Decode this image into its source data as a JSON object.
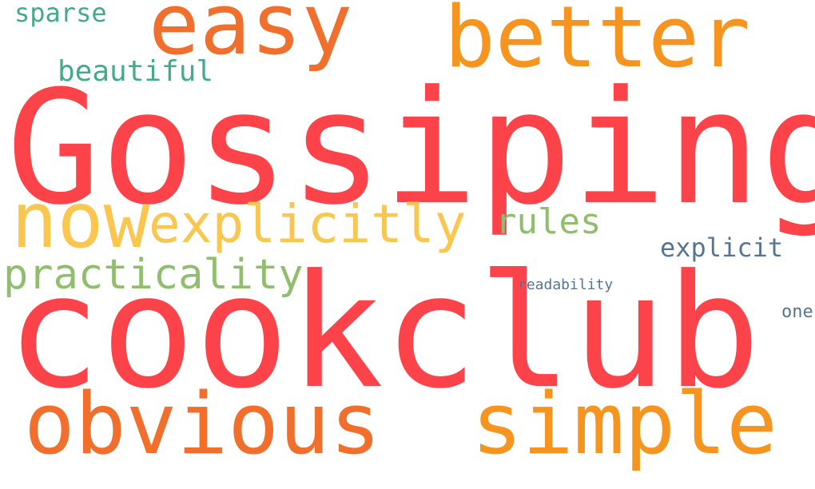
{
  "words": {
    "gossiping": {
      "text": "Gossiping",
      "color": "#fc4349"
    },
    "cookclub": {
      "text": "cookclub",
      "color": "#fc4349"
    },
    "easy": {
      "text": "easy",
      "color": "#f16f2d"
    },
    "better": {
      "text": "better",
      "color": "#f5941e"
    },
    "obvious": {
      "text": "obvious",
      "color": "#f16f2d"
    },
    "simple": {
      "text": "simple",
      "color": "#f5941e"
    },
    "now": {
      "text": "now",
      "color": "#f9c74f"
    },
    "explicitly": {
      "text": "explicitly",
      "color": "#f9c74f"
    },
    "practicality": {
      "text": "practicality",
      "color": "#90be6d"
    },
    "rules": {
      "text": "rules",
      "color": "#90be6d"
    },
    "beautiful": {
      "text": "beautiful",
      "color": "#43aa8b"
    },
    "sparse": {
      "text": "sparse",
      "color": "#43aa8b"
    },
    "explicit": {
      "text": "explicit",
      "color": "#577590"
    },
    "readability": {
      "text": "readability",
      "color": "#577590"
    },
    "one": {
      "text": "one",
      "color": "#577590"
    }
  }
}
